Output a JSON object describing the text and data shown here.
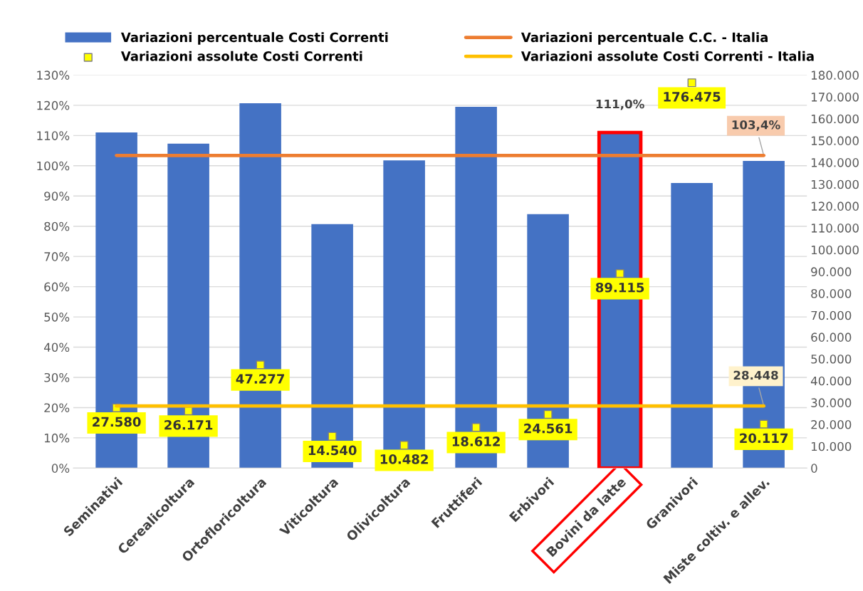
{
  "chart_data": {
    "type": "bar",
    "categories": [
      "Seminativi",
      "Cerealicoltura",
      "Ortofloricoltura",
      "Viticoltura",
      "Olivicoltura",
      "Fruttiferi",
      "Erbivori",
      "Bovini da latte",
      "Granivori",
      "Miste coltiv. e allev."
    ],
    "series": [
      {
        "name": "Variazioni percentuale Costi Correnti",
        "color": "#4472c4",
        "values": [
          111.0,
          107.3,
          120.7,
          80.7,
          101.8,
          119.5,
          84.0,
          111.0,
          94.3,
          101.6
        ],
        "value_labels": [
          null,
          null,
          null,
          null,
          null,
          null,
          null,
          "111,0%",
          null,
          null
        ]
      },
      {
        "name": "Variazioni assolute Costi Correnti",
        "type": "scatter",
        "axis": "y2",
        "color": "#ffff00",
        "marker": "square",
        "values": [
          27580,
          26171,
          47277,
          14540,
          10482,
          18612,
          24561,
          89115,
          176475,
          20117
        ],
        "value_labels": [
          "27.580",
          "26.171",
          "47.277",
          "14.540",
          "10.482",
          "18.612",
          "24.561",
          "89.115",
          "176.475",
          "20.117"
        ]
      },
      {
        "name": "Variazioni percentuale C.C. - Italia",
        "type": "line",
        "color": "#ed7d31",
        "values": [
          103.4,
          103.4,
          103.4,
          103.4,
          103.4,
          103.4,
          103.4,
          103.4,
          103.4,
          103.4
        ],
        "value_labels": [
          null,
          null,
          null,
          null,
          null,
          null,
          null,
          null,
          null,
          "103,4%"
        ]
      },
      {
        "name": "Variazioni assolute Costi Correnti - Italia",
        "type": "line",
        "axis": "y2",
        "color": "#ffc000",
        "values": [
          28448,
          28448,
          28448,
          28448,
          28448,
          28448,
          28448,
          28448,
          28448,
          28448
        ],
        "value_labels": [
          null,
          null,
          null,
          null,
          null,
          null,
          null,
          null,
          null,
          "28.448"
        ]
      }
    ],
    "ylim": [
      0,
      130
    ],
    "yticks": [
      {
        "value": 0,
        "label": "0%"
      },
      {
        "value": 10,
        "label": "10%"
      },
      {
        "value": 20,
        "label": "20%"
      },
      {
        "value": 30,
        "label": "30%"
      },
      {
        "value": 40,
        "label": "40%"
      },
      {
        "value": 50,
        "label": "50%"
      },
      {
        "value": 60,
        "label": "60%"
      },
      {
        "value": 70,
        "label": "70%"
      },
      {
        "value": 80,
        "label": "80%"
      },
      {
        "value": 90,
        "label": "90%"
      },
      {
        "value": 100,
        "label": "100%"
      },
      {
        "value": 110,
        "label": "110%"
      },
      {
        "value": 120,
        "label": "120%"
      },
      {
        "value": 130,
        "label": "130%"
      }
    ],
    "y2lim": [
      0,
      180000
    ],
    "y2ticks": [
      0,
      {
        "value": 10000,
        "label": "10.000"
      },
      {
        "value": 20000,
        "label": "20.000"
      },
      {
        "value": 30000,
        "label": "30.000"
      },
      {
        "value": 40000,
        "label": "40.000"
      },
      {
        "value": 50000,
        "label": "50.000"
      },
      {
        "value": 60000,
        "label": "60.000"
      },
      {
        "value": 70000,
        "label": "70.000"
      },
      {
        "value": 80000,
        "label": "80.000"
      },
      {
        "value": 90000,
        "label": "90.000"
      },
      {
        "value": 100000,
        "label": "100.000"
      },
      {
        "value": 110000,
        "label": "110.000"
      },
      {
        "value": 120000,
        "label": "120.000"
      },
      {
        "value": 130000,
        "label": "130.000"
      },
      {
        "value": 140000,
        "label": "140.000"
      },
      {
        "value": 150000,
        "label": "150.000"
      },
      {
        "value": 160000,
        "label": "160.000"
      },
      {
        "value": 170000,
        "label": "170.000"
      },
      {
        "value": 180000,
        "label": "180.000"
      }
    ],
    "grid": "y",
    "legend": "top"
  }
}
